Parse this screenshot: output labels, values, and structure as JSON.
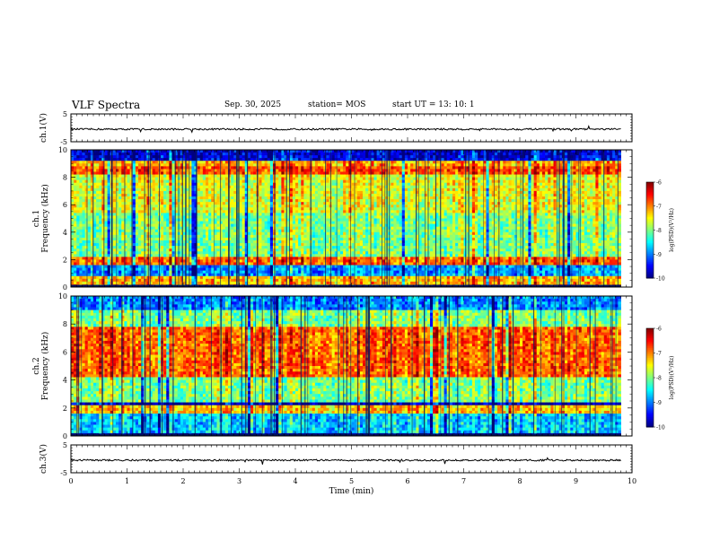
{
  "header": {
    "title": "VLF Spectra",
    "date": "Sep. 30, 2025",
    "station": "station= MOS",
    "start": "start  UT =   13: 10: 1"
  },
  "chart_data": [
    {
      "type": "line",
      "name": "ch1-voltage",
      "ylabel": "ch.1(V)",
      "xlim": [
        0,
        10
      ],
      "ylim": [
        -5,
        5
      ],
      "yticks": [
        "5",
        "-5"
      ],
      "trace_level": -0.5
    },
    {
      "type": "heatmap",
      "name": "ch1-spectrogram",
      "ylabel_top": "ch.1",
      "ylabel": "Frequency (kHz)",
      "xlim": [
        0,
        10
      ],
      "ylim": [
        0,
        10
      ],
      "yticks": [
        "0",
        "2",
        "4",
        "6",
        "8",
        "10"
      ],
      "data_end_min": 9.8,
      "colorbar": {
        "label": "log(PSD)(V²/Hz)",
        "range": [
          -10,
          -6
        ],
        "ticks": [
          "-6",
          "-7",
          "-8",
          "-9",
          "-10"
        ]
      },
      "dominant_level": -7.8,
      "bands": [
        {
          "f_range": [
            9.3,
            10
          ],
          "level": -9.6
        },
        {
          "f_range": [
            8.3,
            8.9
          ],
          "level": -6.8
        },
        {
          "f_range": [
            5.5,
            8.3
          ],
          "level": -7.6
        },
        {
          "f_range": [
            2.2,
            5.5
          ],
          "level": -8.0
        },
        {
          "f_range": [
            1.7,
            2.1
          ],
          "level": -6.9
        },
        {
          "f_range": [
            0.7,
            1.6
          ],
          "level": -8.9
        },
        {
          "f_range": [
            0.0,
            0.6
          ],
          "level": -7.2
        }
      ]
    },
    {
      "type": "heatmap",
      "name": "ch2-spectrogram",
      "ylabel_top": "ch.2",
      "ylabel": "Frequency (kHz)",
      "xlim": [
        0,
        10
      ],
      "ylim": [
        0,
        10
      ],
      "yticks": [
        "0",
        "2",
        "4",
        "6",
        "8",
        "10"
      ],
      "data_end_min": 9.8,
      "colorbar": {
        "label": "log(PSD)(V²/Hz)",
        "range": [
          -10,
          -6
        ],
        "ticks": [
          "-6",
          "-7",
          "-8",
          "-9",
          "-10"
        ]
      },
      "bands": [
        {
          "f_range": [
            9.0,
            10
          ],
          "level": -9.0
        },
        {
          "f_range": [
            7.8,
            9.0
          ],
          "level": -8.0
        },
        {
          "f_range": [
            4.3,
            7.8
          ],
          "level": -6.9
        },
        {
          "f_range": [
            2.5,
            4.3
          ],
          "level": -8.0
        },
        {
          "f_range": [
            1.6,
            2.1
          ],
          "level": -7.3
        },
        {
          "f_range": [
            0.3,
            1.6
          ],
          "level": -8.7
        },
        {
          "f_range": [
            0.0,
            0.3
          ],
          "level": -9.8
        }
      ]
    },
    {
      "type": "line",
      "name": "ch3-voltage",
      "ylabel": "ch.3(V)",
      "xlim": [
        0,
        10
      ],
      "ylim": [
        -5,
        5
      ],
      "yticks": [
        "5",
        "-5"
      ],
      "trace_level": -0.5,
      "xlabel": "Time  (min)",
      "xticks": [
        "0",
        "1",
        "2",
        "3",
        "4",
        "5",
        "6",
        "7",
        "8",
        "9",
        "10"
      ]
    }
  ]
}
